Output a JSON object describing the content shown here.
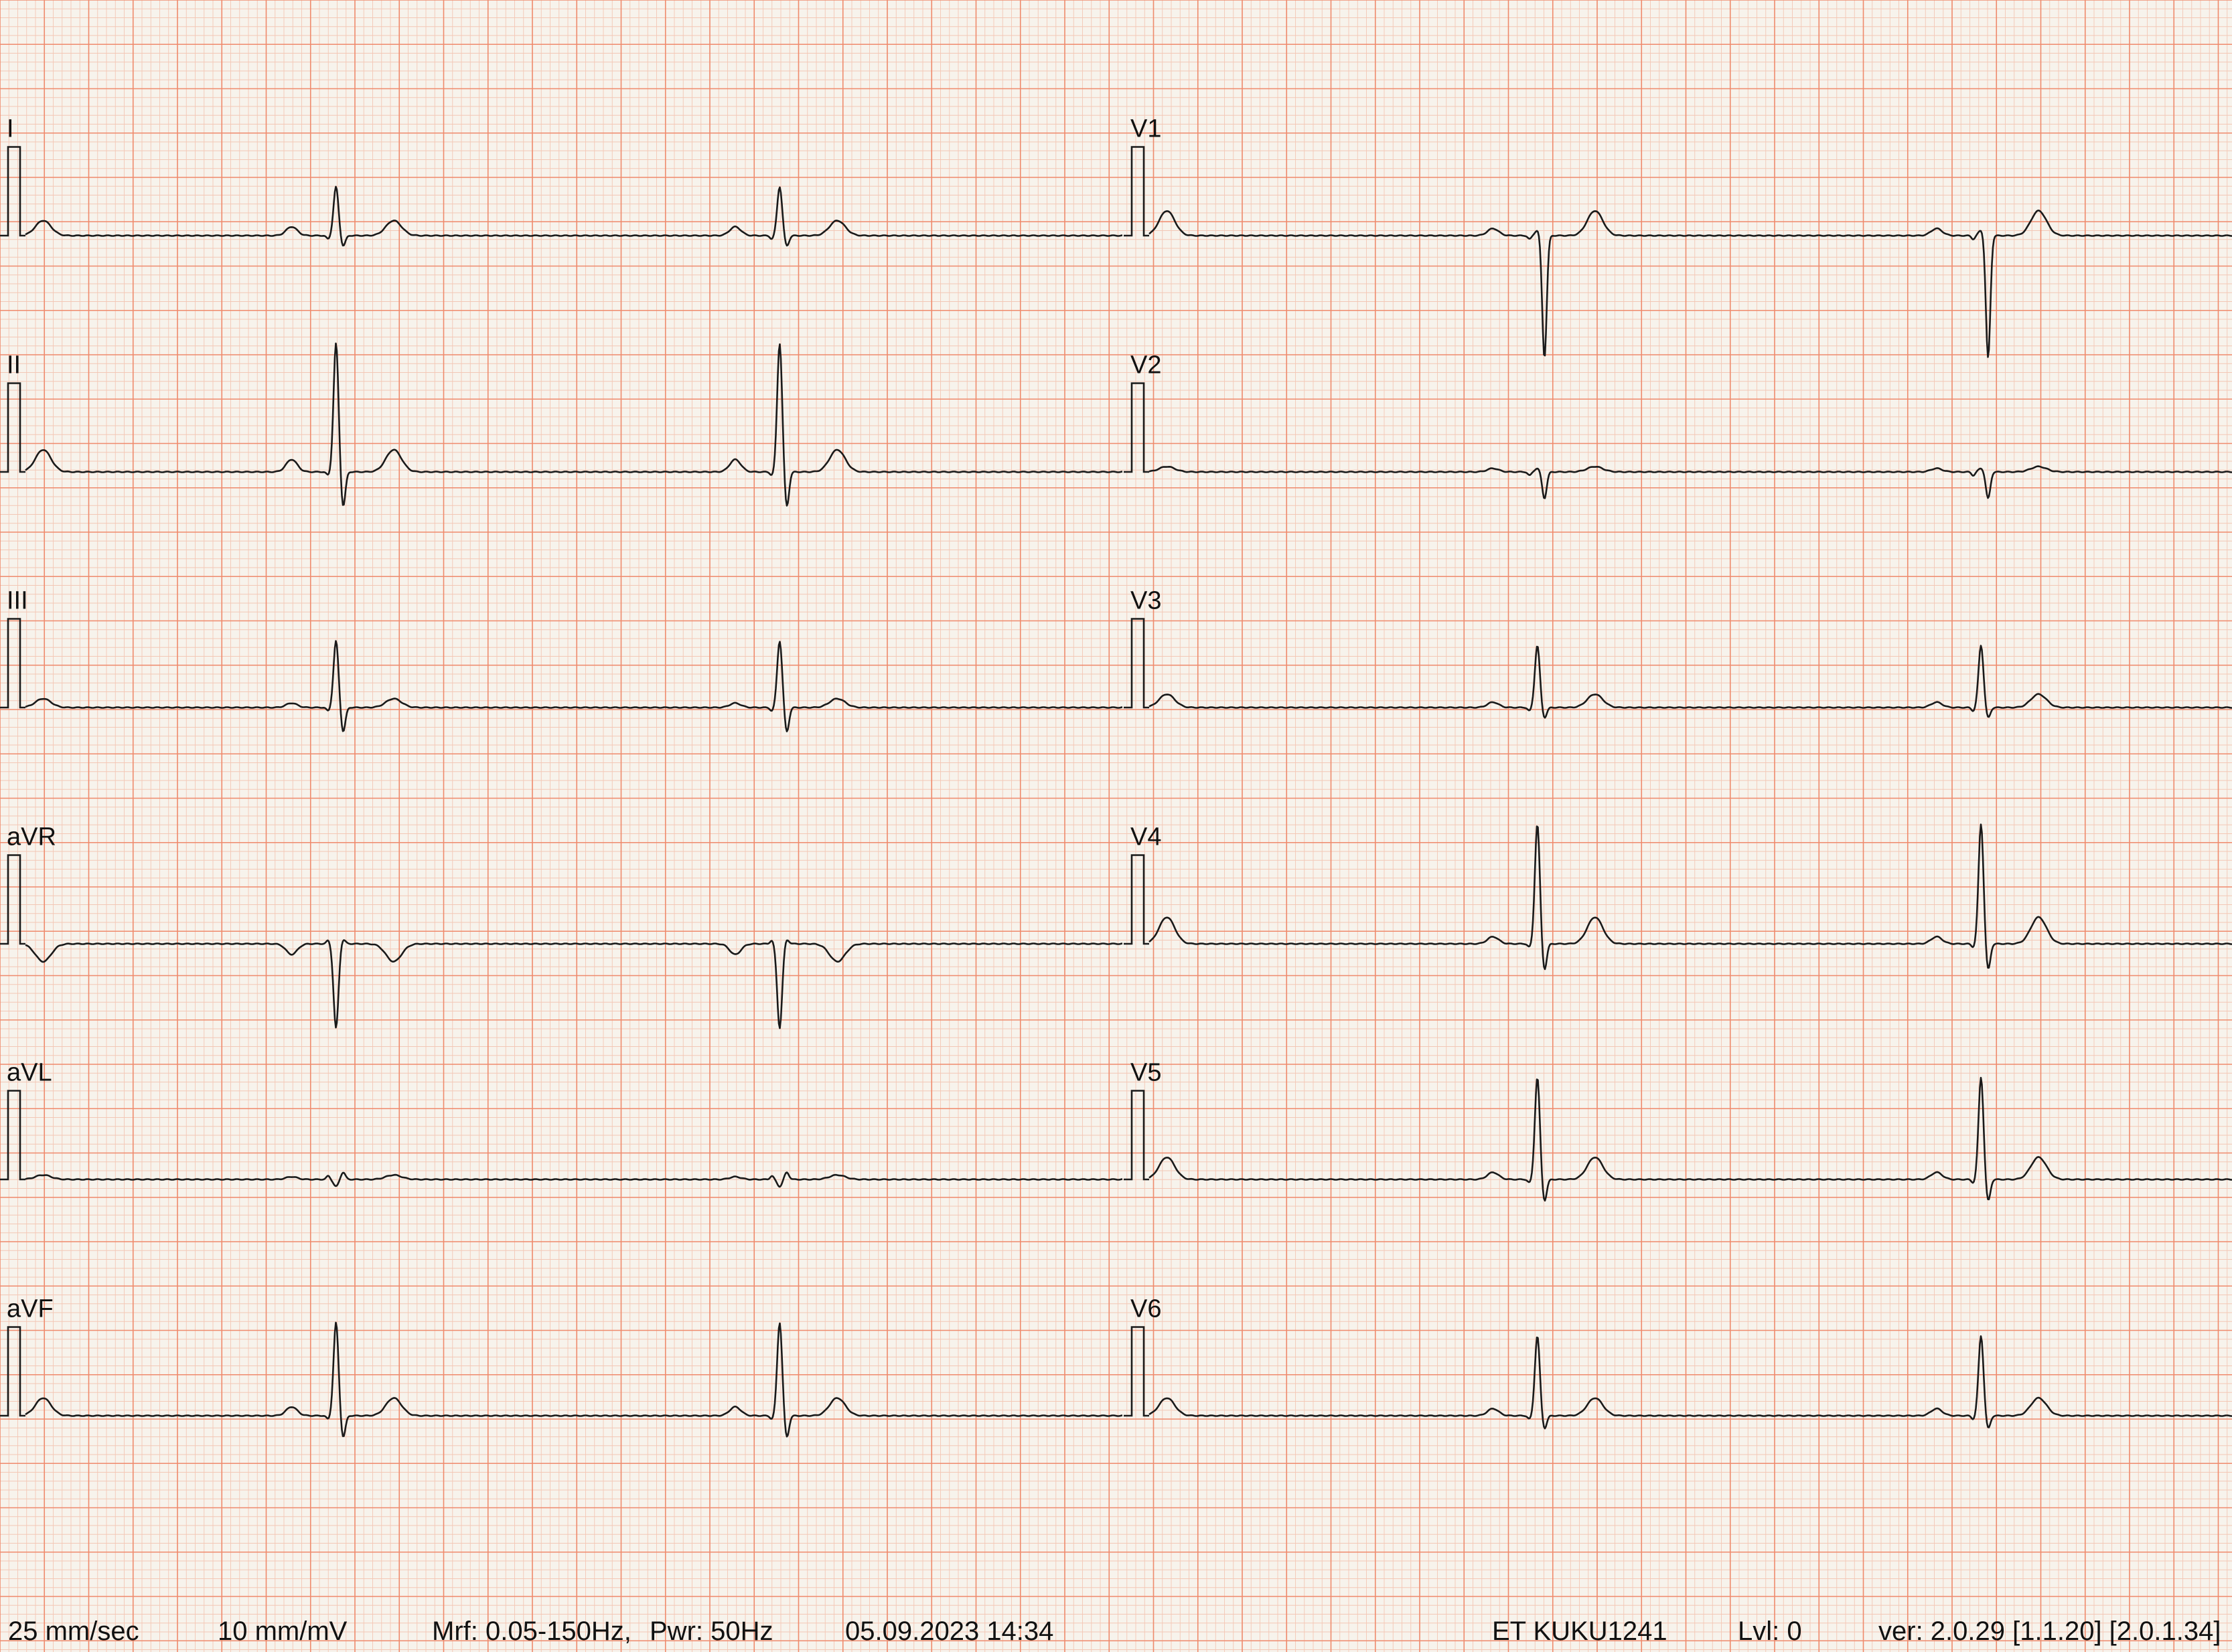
{
  "colors": {
    "paper": "#f7f3ec",
    "grid_minor": "#f3c7b5",
    "grid_major": "#ef8a6c",
    "trace": "#1a1a1a"
  },
  "chart_data": {
    "type": "line",
    "description_units": "time in seconds from start of each column, amplitude in mV",
    "grid": true,
    "paper_speed": "25 mm/sec",
    "gain": "10 mm/mV",
    "columns": [
      {
        "duration_s": 5.0,
        "leads": [
          {
            "name": "I",
            "qrs": [
              0.55,
              -0.12,
              0.0
            ],
            "p": 0.1,
            "t": 0.17,
            "beats": [
              1.4,
              3.4
            ]
          },
          {
            "name": "II",
            "qrs": [
              1.45,
              -0.4,
              0.0
            ],
            "p": 0.14,
            "t": 0.25,
            "beats": [
              1.4,
              3.4
            ]
          },
          {
            "name": "III",
            "qrs": [
              0.75,
              -0.28,
              0.0
            ],
            "p": 0.05,
            "t": 0.1,
            "beats": [
              1.4,
              3.4
            ]
          },
          {
            "name": "aVR",
            "qrs": [
              -0.95,
              0.05,
              0.0
            ],
            "p": -0.12,
            "t": -0.2,
            "beats": [
              1.4,
              3.4
            ]
          },
          {
            "name": "aVL",
            "qrs": [
              -0.08,
              0.08,
              0.0
            ],
            "p": 0.03,
            "t": 0.05,
            "beats": [
              1.4,
              3.4
            ]
          },
          {
            "name": "aVF",
            "qrs": [
              1.05,
              -0.25,
              0.0
            ],
            "p": 0.1,
            "t": 0.2,
            "beats": [
              1.4,
              3.4
            ]
          }
        ]
      },
      {
        "duration_s": 5.0,
        "leads": [
          {
            "name": "V1",
            "qrs": [
              0.06,
              -1.38,
              0.0
            ],
            "p": 0.08,
            "t": 0.28,
            "beats": [
              1.75,
              3.75
            ]
          },
          {
            "name": "V2",
            "qrs": [
              0.04,
              -0.3,
              0.0
            ],
            "p": 0.04,
            "t": 0.06,
            "beats": [
              1.75,
              3.75
            ]
          },
          {
            "name": "V3",
            "qrs": [
              0.7,
              -0.12,
              0.0
            ],
            "p": 0.06,
            "t": 0.15,
            "beats": [
              1.75,
              3.75
            ]
          },
          {
            "name": "V4",
            "qrs": [
              1.35,
              -0.3,
              0.0
            ],
            "p": 0.08,
            "t": 0.3,
            "beats": [
              1.75,
              3.75
            ]
          },
          {
            "name": "V5",
            "qrs": [
              1.15,
              -0.25,
              0.0
            ],
            "p": 0.08,
            "t": 0.25,
            "beats": [
              1.75,
              3.75
            ]
          },
          {
            "name": "V6",
            "qrs": [
              0.9,
              -0.15,
              0.0
            ],
            "p": 0.08,
            "t": 0.2,
            "beats": [
              1.75,
              3.75
            ]
          }
        ]
      }
    ]
  },
  "footer": {
    "speed": "25 mm/sec",
    "gain": "10 mm/mV",
    "filter": "Mrf: 0.05-150Hz,",
    "power": "Pwr: 50Hz",
    "datetime": "05.09.2023 14:34",
    "device": "ET KUKU1241",
    "level": "Lvl: 0",
    "version": "ver: 2.0.29 [1.1.20] [2.0.1.34]"
  }
}
